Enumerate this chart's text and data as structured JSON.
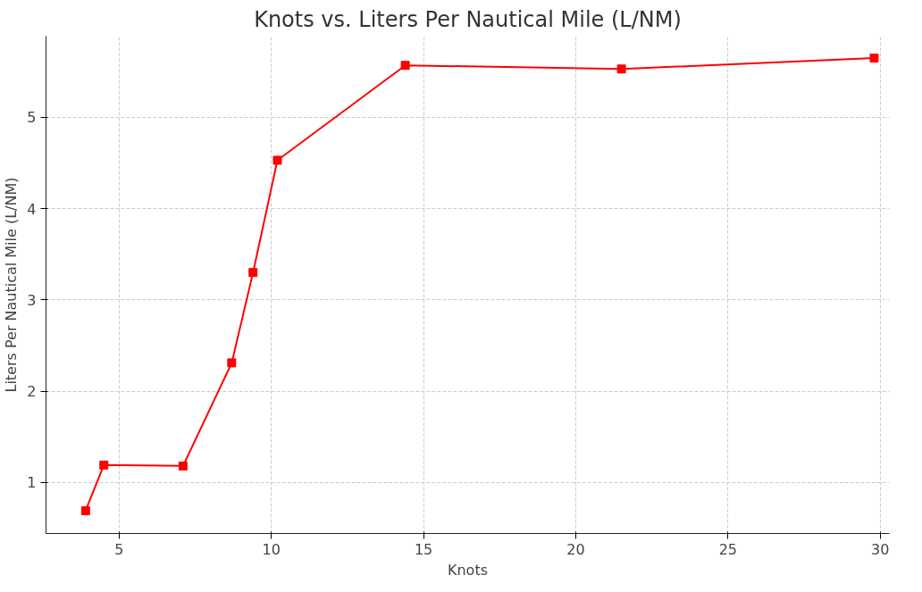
{
  "chart_data": {
    "type": "line",
    "title": "Knots vs. Liters Per Nautical Mile (L/NM)",
    "xlabel": "Knots",
    "ylabel": "Liters Per Nautical Mile (L/NM)",
    "x": [
      3.9,
      4.5,
      7.1,
      8.7,
      9.4,
      10.2,
      14.4,
      21.5,
      29.8
    ],
    "series": [
      {
        "color": "#ff0000",
        "values": [
          0.69,
          1.19,
          1.18,
          2.31,
          3.3,
          4.53,
          5.57,
          5.53,
          5.65
        ]
      }
    ],
    "xlim": [
      2.6,
      30.3
    ],
    "ylim": [
      0.44,
      5.89
    ],
    "xticks": [
      5,
      10,
      15,
      20,
      25,
      30
    ],
    "yticks": [
      1,
      2,
      3,
      4,
      5
    ],
    "grid": true,
    "marker": "square",
    "line_style": "solid"
  }
}
